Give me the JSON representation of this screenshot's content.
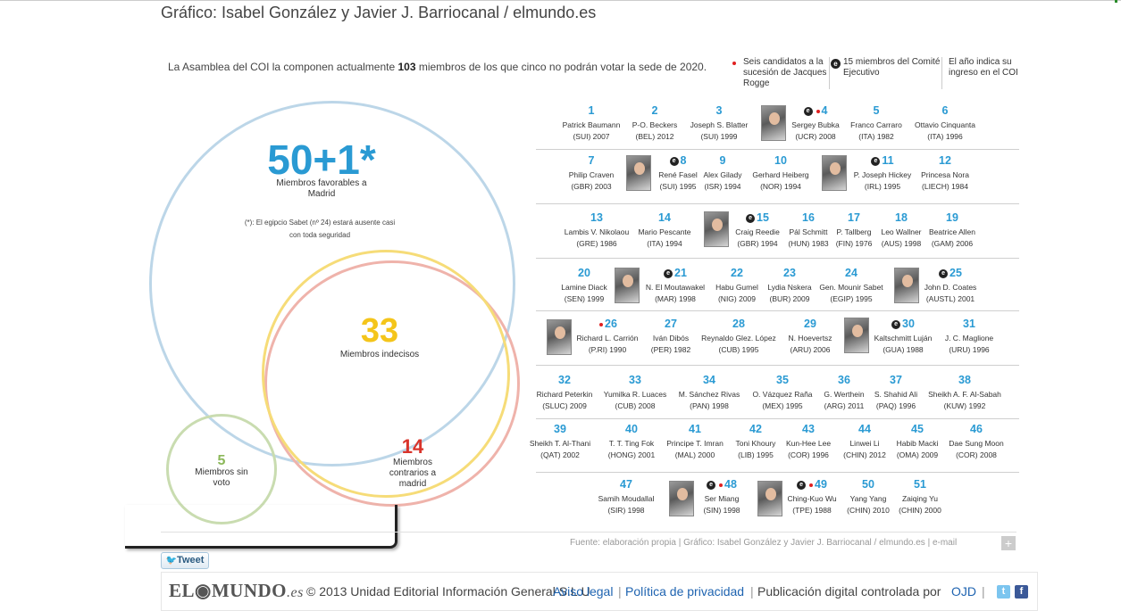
{
  "credit": "Gráfico: Isabel González y Javier J. Barriocanal / elmundo.es",
  "intro": {
    "pre": "La Asamblea del COI la componen actualmente ",
    "bold": "103",
    "post": " miembros de los que cinco no podrán votar la sede de 2020."
  },
  "legend": {
    "candidates": "Seis candidatos a la sucesión de Jacques Rogge",
    "executive_icon": "e",
    "executive": "15 miembros del Comité  Ejecutivo",
    "year_note": "El año indica su ingreso en el COI"
  },
  "groups": {
    "favorable": {
      "number": "50+1*",
      "label": "Miembros favorables a Madrid",
      "note": "(*): El egipcio Sabet (nº 24) estará ausente casi con toda seguridad"
    },
    "undecided": {
      "number": "33",
      "label": "Miembros indecisos"
    },
    "against": {
      "number": "14",
      "label": "Miembros contrarios a madrid"
    },
    "novote": {
      "number": "5",
      "label": "Miembros sin voto"
    }
  },
  "members": [
    {
      "num": "1",
      "name": "Patrick Baumann",
      "info": "(SUI) 2007"
    },
    {
      "num": "2",
      "name": "P-O. Beckers",
      "info": "(BEL) 2012"
    },
    {
      "num": "3",
      "name": "Joseph S. Blatter",
      "info": "(SUI) 1999"
    },
    {
      "num": "4",
      "name": "Sergey Bubka",
      "info": "(UCR) 2008"
    },
    {
      "num": "5",
      "name": "Franco Carraro",
      "info": "(ITA) 1982"
    },
    {
      "num": "6",
      "name": "Ottavio Cinquanta",
      "info": "(ITA) 1996"
    },
    {
      "num": "7",
      "name": "Philip Craven",
      "info": "(GBR) 2003"
    },
    {
      "num": "8",
      "name": "René Fasel",
      "info": "(SUI) 1995"
    },
    {
      "num": "9",
      "name": "Alex Gilady",
      "info": "(ISR) 1994"
    },
    {
      "num": "10",
      "name": "Gerhard  Heiberg",
      "info": "(NOR) 1994"
    },
    {
      "num": "11",
      "name": "P.  Joseph Hickey",
      "info": "(IRL) 1995"
    },
    {
      "num": "12",
      "name": "Princesa Nora",
      "info": "(LIECH) 1984"
    },
    {
      "num": "13",
      "name": "Lambis V. Nikolaou",
      "info": "(GRE) 1986"
    },
    {
      "num": "14",
      "name": "Mario Pescante",
      "info": "(ITA) 1994"
    },
    {
      "num": "15",
      "name": "Craig Reedie",
      "info": "(GBR) 1994"
    },
    {
      "num": "16",
      "name": "Pál Schmitt",
      "info": "(HUN) 1983"
    },
    {
      "num": "17",
      "name": "P.  Tallberg",
      "info": "(FIN) 1976"
    },
    {
      "num": "18",
      "name": "Leo Wallner",
      "info": "(AUS) 1998"
    },
    {
      "num": "19",
      "name": "Beatrice Allen",
      "info": "(GAM) 2006"
    },
    {
      "num": "20",
      "name": "Lamine Diack",
      "info": "(SEN) 1999"
    },
    {
      "num": "21",
      "name": "N. El Moutawakel",
      "info": "(MAR) 1998"
    },
    {
      "num": "22",
      "name": "Habu Gumel",
      "info": "(NIG) 2009"
    },
    {
      "num": "23",
      "name": "Lydia Nskera",
      "info": "(BUR) 2009"
    },
    {
      "num": "24",
      "name": "Gen. Mounir Sabet",
      "info": "(EGIP) 1995"
    },
    {
      "num": "25",
      "name": "John D. Coates",
      "info": "(AUSTL) 2001"
    },
    {
      "num": "26",
      "name": "Richard L. Carrión",
      "info": "(P.RI) 1990"
    },
    {
      "num": "27",
      "name": "Iván Dibós",
      "info": "(PER) 1982"
    },
    {
      "num": "28",
      "name": "Reynaldo Glez. López",
      "info": "(CUB) 1995"
    },
    {
      "num": "29",
      "name": "N. Hoevertsz",
      "info": "(ARU) 2006"
    },
    {
      "num": "30",
      "name": "Kaltschmitt Luján",
      "info": "(GUA) 1988"
    },
    {
      "num": "31",
      "name": "J. C. Maglione",
      "info": "(URU) 1996"
    },
    {
      "num": "32",
      "name": "Richard Peterkin",
      "info": "(SLUC) 2009"
    },
    {
      "num": "33",
      "name": "Yumilka R. Luaces",
      "info": "(CUB) 2008"
    },
    {
      "num": "34",
      "name": "M. Sánchez Rivas",
      "info": "(PAN) 1998"
    },
    {
      "num": "35",
      "name": "O. Vázquez Raña",
      "info": "(MEX) 1995"
    },
    {
      "num": "36",
      "name": "G. Werthein",
      "info": "(ARG) 2011"
    },
    {
      "num": "37",
      "name": "S. Shahid Ali",
      "info": "(PAQ) 1996"
    },
    {
      "num": "38",
      "name": "Sheikh A. F. Al-Sabah",
      "info": "(KUW) 1992"
    },
    {
      "num": "39",
      "name": "Sheikh T. Al-Thani",
      "info": "(QAT) 2002"
    },
    {
      "num": "40",
      "name": "T. T. Ting Fok",
      "info": "(HONG) 2001"
    },
    {
      "num": "41",
      "name": "Principe T. Imran",
      "info": "(MAL) 2000"
    },
    {
      "num": "42",
      "name": "Toni Khoury",
      "info": "(LIB) 1995"
    },
    {
      "num": "43",
      "name": "Kun-Hee Lee",
      "info": "(COR) 1996"
    },
    {
      "num": "44",
      "name": "Linwei Li",
      "info": "(CHIN) 2012"
    },
    {
      "num": "45",
      "name": "Habib Macki",
      "info": "(OMA) 2009"
    },
    {
      "num": "46",
      "name": "Dae Sung Moon",
      "info": "(COR) 2008"
    },
    {
      "num": "47",
      "name": "Samih Moudallal",
      "info": "(SIR) 1998"
    },
    {
      "num": "48",
      "name": "Ser Miang",
      "info": "(SIN) 1998"
    },
    {
      "num": "49",
      "name": "Ching-Kuo Wu",
      "info": "(TPE) 1988"
    },
    {
      "num": "50",
      "name": "Yang Yang",
      "info": "(CHIN) 2010"
    },
    {
      "num": "51",
      "name": "Zaiqing Yu",
      "info": "(CHIN) 2000"
    }
  ],
  "source": "Fuente: elaboración propia | Gráfico: Isabel González y Javier J. Barriocanal / elmundo.es | e-mail",
  "share": {
    "plus": "+",
    "tweet": "Tweet"
  },
  "footer": {
    "logo_main": "EL",
    "logo_o": "◉",
    "logo_rest": "MUNDO",
    "logo_es": ".es",
    "copyright": "© 2013 Unidad Editorial Información General S.L.U",
    "aviso": "Aviso legal",
    "privacidad": "Política de privacidad",
    "publicacion": "Publicación digital controlada por",
    "ojd": "OJD",
    "sep": "|"
  },
  "colors": {
    "favorable": "#2a9ad3",
    "undecided": "#f4c51b",
    "against": "#d9342b",
    "novote": "#8cb85a"
  }
}
